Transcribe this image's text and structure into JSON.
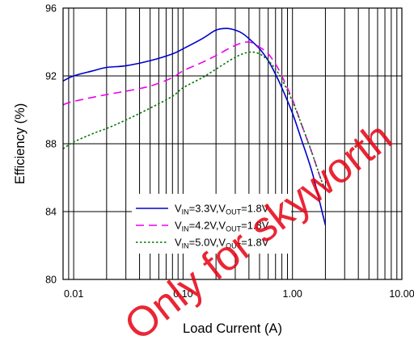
{
  "chart_data": {
    "type": "line",
    "xlabel": "Load Current (A)",
    "ylabel": "Efficiency (%)",
    "xscale": "log",
    "xlim": [
      0.008,
      10
    ],
    "ylim": [
      80,
      96
    ],
    "xticks": [
      {
        "value": 0.01,
        "label": "0.01"
      },
      {
        "value": 0.1,
        "label": "0.10"
      },
      {
        "value": 1,
        "label": "1.00"
      },
      {
        "value": 10,
        "label": "10.00"
      }
    ],
    "yticks": [
      {
        "value": 80,
        "label": "80"
      },
      {
        "value": 84,
        "label": "84"
      },
      {
        "value": 88,
        "label": "88"
      },
      {
        "value": 92,
        "label": "92"
      },
      {
        "value": 96,
        "label": "96"
      }
    ],
    "grid": true,
    "legend_position": "lower-center",
    "series": [
      {
        "name": "VIN=3.3V,VOUT=1.8V",
        "legend_parts": [
          {
            "text": "V",
            "sub": false
          },
          {
            "text": "IN",
            "sub": true
          },
          {
            "text": "=3.3V,V",
            "sub": false
          },
          {
            "text": "OUT",
            "sub": true
          },
          {
            "text": "=1.8V",
            "sub": false
          }
        ],
        "color": "#0000cc",
        "style": "solid",
        "x": [
          0.008,
          0.01,
          0.015,
          0.02,
          0.03,
          0.05,
          0.08,
          0.1,
          0.15,
          0.2,
          0.25,
          0.3,
          0.35,
          0.4,
          0.5,
          0.6,
          0.7,
          0.8,
          1.0,
          1.2,
          1.5,
          1.8,
          2.0
        ],
        "y": [
          91.7,
          92.0,
          92.3,
          92.5,
          92.6,
          92.9,
          93.3,
          93.6,
          94.2,
          94.7,
          94.8,
          94.7,
          94.5,
          94.2,
          93.6,
          92.9,
          92.1,
          91.3,
          89.8,
          88.3,
          86.4,
          84.4,
          83.2
        ]
      },
      {
        "name": "VIN=4.2V,VOUT=1.8V",
        "legend_parts": [
          {
            "text": "V",
            "sub": false
          },
          {
            "text": "IN",
            "sub": true
          },
          {
            "text": "=4.2V,V",
            "sub": false
          },
          {
            "text": "OUT",
            "sub": true
          },
          {
            "text": "=1.8V",
            "sub": false
          }
        ],
        "color": "#ee00ee",
        "style": "dashed",
        "x": [
          0.008,
          0.01,
          0.02,
          0.03,
          0.05,
          0.08,
          0.1,
          0.15,
          0.2,
          0.3,
          0.4,
          0.5,
          0.6,
          0.7,
          0.8,
          1.0,
          1.2,
          1.5,
          1.8,
          2.0
        ],
        "y": [
          90.3,
          90.5,
          90.9,
          91.1,
          91.4,
          91.9,
          92.3,
          92.8,
          93.2,
          93.8,
          94.0,
          93.7,
          93.3,
          92.7,
          92.0,
          90.6,
          89.2,
          87.5,
          86.0,
          85.3
        ]
      },
      {
        "name": "VIN=5.0V,VOUT=1.8V",
        "legend_parts": [
          {
            "text": "V",
            "sub": false
          },
          {
            "text": "IN",
            "sub": true
          },
          {
            "text": "=5.0V,V",
            "sub": false
          },
          {
            "text": "OUT",
            "sub": true
          },
          {
            "text": "=1.8V",
            "sub": false
          }
        ],
        "color": "#007700",
        "style": "dotted",
        "x": [
          0.008,
          0.01,
          0.015,
          0.02,
          0.03,
          0.05,
          0.08,
          0.1,
          0.15,
          0.2,
          0.3,
          0.4,
          0.5,
          0.6,
          0.7,
          0.8,
          1.0,
          1.2,
          1.5,
          1.8,
          2.0
        ],
        "y": [
          87.7,
          88.1,
          88.6,
          88.9,
          89.4,
          90.1,
          90.8,
          91.3,
          91.9,
          92.4,
          93.1,
          93.4,
          93.3,
          92.9,
          92.4,
          91.8,
          90.5,
          89.2,
          87.5,
          86.0,
          85.2
        ]
      }
    ]
  },
  "watermark": {
    "text": "Only for skyworth",
    "color": "#e60012"
  }
}
